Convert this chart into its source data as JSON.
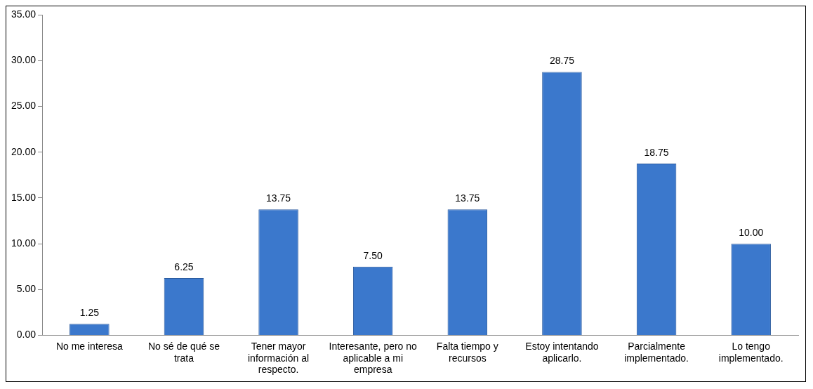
{
  "chart_data": {
    "type": "bar",
    "categories": [
      "No me interesa",
      "No sé de qué se trata",
      "Tener mayor información al respecto.",
      "Interesante, pero no aplicable a mi empresa",
      "Falta tiempo y recursos",
      "Estoy intentando aplicarlo.",
      "Parcialmente implementado.",
      "Lo tengo implementado."
    ],
    "values": [
      1.25,
      6.25,
      13.75,
      7.5,
      13.75,
      28.75,
      18.75,
      10
    ],
    "value_labels": [
      "1.25",
      "6.25",
      "13.75",
      "7.50",
      "13.75",
      "28.75",
      "18.75",
      "10.00"
    ],
    "color": "#3b78cc",
    "ylim": [
      0,
      35
    ],
    "yticks": [
      {
        "value": 0,
        "label": "0.00"
      },
      {
        "value": 5,
        "label": "5.00"
      },
      {
        "value": 10,
        "label": "10.00"
      },
      {
        "value": 15,
        "label": "15.00"
      },
      {
        "value": 20,
        "label": "20.00"
      },
      {
        "value": 25,
        "label": "25.00"
      },
      {
        "value": 30,
        "label": "30.00"
      },
      {
        "value": 35,
        "label": "35.00"
      }
    ],
    "grid": false,
    "legend": false
  }
}
